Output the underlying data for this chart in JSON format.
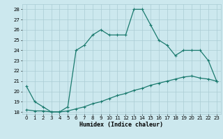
{
  "xlabel": "Humidex (Indice chaleur)",
  "bg_color": "#cce8ee",
  "grid_color": "#aaccd4",
  "line_color": "#1a7a6e",
  "x_upper": [
    0,
    1,
    2,
    3,
    4,
    5,
    6,
    7,
    8,
    9,
    10,
    11,
    12,
    13,
    14,
    15,
    16,
    17,
    18,
    19,
    20,
    21,
    22,
    23
  ],
  "y_upper": [
    20.5,
    19.0,
    18.5,
    18.0,
    18.0,
    18.5,
    24.0,
    24.5,
    25.5,
    26.0,
    25.5,
    25.5,
    25.5,
    28.0,
    28.0,
    26.5,
    25.0,
    24.5,
    23.5,
    24.0,
    24.0,
    24.0,
    23.0,
    21.0
  ],
  "x_lower": [
    0,
    1,
    2,
    3,
    4,
    5,
    6,
    7,
    8,
    9,
    10,
    11,
    12,
    13,
    14,
    15,
    16,
    17,
    18,
    19,
    20,
    21,
    22,
    23
  ],
  "y_lower": [
    18.2,
    18.1,
    18.1,
    18.0,
    18.0,
    18.1,
    18.3,
    18.5,
    18.8,
    19.0,
    19.3,
    19.6,
    19.8,
    20.1,
    20.3,
    20.6,
    20.8,
    21.0,
    21.2,
    21.4,
    21.5,
    21.3,
    21.2,
    21.0
  ],
  "ylim": [
    17.8,
    28.5
  ],
  "yticks": [
    18,
    19,
    20,
    21,
    22,
    23,
    24,
    25,
    26,
    27,
    28
  ],
  "xticks": [
    0,
    1,
    2,
    3,
    4,
    5,
    6,
    7,
    8,
    9,
    10,
    11,
    12,
    13,
    14,
    15,
    16,
    17,
    18,
    19,
    20,
    21,
    22,
    23
  ],
  "marker": "+",
  "markersize": 3,
  "linewidth": 0.9,
  "tick_fontsize": 5,
  "xlabel_fontsize": 6
}
